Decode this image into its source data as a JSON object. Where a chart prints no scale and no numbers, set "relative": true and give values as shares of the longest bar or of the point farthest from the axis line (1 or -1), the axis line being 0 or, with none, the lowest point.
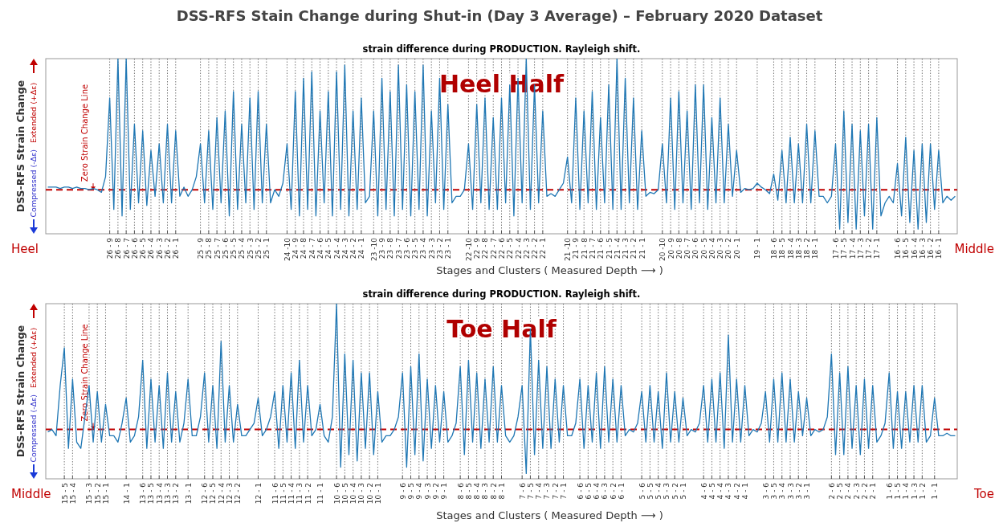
{
  "chart_data": [
    {
      "type": "line",
      "title": "DSS-RFS Stain Change during Shut-in (Day 3 Average) – February 2020 Dataset",
      "subtitle": "strain difference during PRODUCTION. Rayleigh shift.",
      "xlabel": "Stages and Clusters ( Measured Depth ⟶ )",
      "ylabel": "DSS-RFS Strain Change",
      "annotations": [
        "Heel Half",
        "Heel",
        "Middle",
        "Extended (+Δε)",
        "Compressed (-Δε)"
      ],
      "relative": true,
      "grid": "x",
      "categories": [
        null,
        null,
        null,
        null,
        null,
        null,
        null,
        null,
        null,
        null,
        null,
        null,
        null,
        null,
        null,
        "26 - 9",
        null,
        "26 - 8",
        null,
        "26 - 7",
        null,
        "26 - 6",
        null,
        "26 - 5",
        null,
        "26 - 4",
        null,
        "26 - 3",
        null,
        "26 - 2",
        null,
        "26 - 1",
        null,
        null,
        null,
        null,
        null,
        "25 - 9",
        null,
        "25 - 8",
        null,
        "25 - 7",
        null,
        "25 - 6",
        null,
        "25 - 5",
        null,
        "25 - 4",
        null,
        "25 - 3",
        null,
        "25 - 2",
        null,
        "25 - 1",
        null,
        null,
        null,
        null,
        "24 -10",
        null,
        "24 - 9",
        null,
        "24 - 8",
        null,
        "24 - 7",
        null,
        "24 - 6",
        null,
        "24 - 5",
        null,
        "24 - 4",
        null,
        "24 - 3",
        null,
        "24 - 2",
        null,
        "24 - 1",
        null,
        null,
        "23 -10",
        null,
        "23 - 9",
        null,
        "23 - 8",
        null,
        "23 - 7",
        null,
        "23 - 6",
        null,
        "23 - 5",
        null,
        "23 - 4",
        null,
        "23 - 3",
        null,
        "23 - 2",
        null,
        "23 - 1",
        null,
        null,
        null,
        null,
        "22 -10",
        null,
        "22 - 9",
        null,
        "22 - 8",
        null,
        "22 - 7",
        null,
        "22 - 6",
        null,
        "22 - 5",
        null,
        "22 - 4",
        null,
        "22 - 3",
        null,
        "22 - 2",
        null,
        "22 - 1",
        null,
        null,
        null,
        null,
        null,
        "21 -10",
        null,
        "21 - 9",
        null,
        "21 - 8",
        null,
        "21 - 7",
        null,
        "21 - 6",
        null,
        "21 - 5",
        null,
        "21 - 4",
        null,
        "21 - 3",
        null,
        "21 - 2",
        null,
        "21 - 1",
        null,
        null,
        null,
        null,
        "20 -10",
        null,
        "20 - 9",
        null,
        "20 - 8",
        null,
        "20 - 7",
        null,
        "20 - 6",
        null,
        "20 - 5",
        null,
        "20 - 4",
        null,
        "20 - 3",
        null,
        "20 - 2",
        null,
        "20 - 1",
        null,
        null,
        null,
        null,
        "19 - 1",
        null,
        null,
        null,
        "18 - 6",
        null,
        "18 - 5",
        null,
        "18 - 4",
        null,
        "18 - 3",
        null,
        "18 - 2",
        null,
        "18 - 1",
        null,
        null,
        null,
        null,
        "17 - 6",
        null,
        "17 - 5",
        null,
        "17 - 4",
        null,
        "17 - 3",
        null,
        "17 - 2",
        null,
        "17 - 1",
        null,
        null,
        null,
        null,
        "16 - 6",
        null,
        "16 - 5",
        null,
        "16 - 4",
        null,
        "16 - 3",
        null,
        "16 - 2",
        null,
        "16 - 1",
        null,
        null,
        null,
        null
      ],
      "ref_lines": [
        {
          "axis": "y",
          "value": 0,
          "label": "Zero  Strain Change Line",
          "color": "#c00000",
          "line_style": "dashed"
        }
      ],
      "series": [
        {
          "color": "#1f77b4",
          "values": [
            0.02,
            0.02,
            0.02,
            0.01,
            0.02,
            0.02,
            0.01,
            0.02,
            0.01,
            0.01,
            0,
            0.01,
            0,
            -0.02,
            0.1,
            0.7,
            -0.15,
            1,
            -0.2,
            1,
            -0.15,
            0.5,
            -0.1,
            0.45,
            -0.12,
            0.3,
            -0.05,
            0.35,
            -0.1,
            0.5,
            -0.1,
            0.45,
            -0.05,
            0.02,
            -0.05,
            0,
            0.1,
            0.35,
            -0.1,
            0.45,
            -0.15,
            0.55,
            -0.1,
            0.6,
            -0.2,
            0.75,
            -0.15,
            0.5,
            -0.1,
            0.7,
            -0.15,
            0.75,
            -0.1,
            0.5,
            -0.1,
            0,
            -0.05,
            0.05,
            0.35,
            -0.15,
            0.75,
            -0.2,
            0.85,
            -0.15,
            0.9,
            -0.2,
            0.6,
            -0.1,
            0.75,
            -0.2,
            0.9,
            -0.15,
            0.95,
            -0.2,
            0.6,
            -0.15,
            0.7,
            -0.1,
            -0.05,
            0.6,
            -0.2,
            0.85,
            -0.15,
            0.75,
            -0.2,
            0.95,
            -0.15,
            0.8,
            -0.2,
            0.75,
            -0.15,
            0.95,
            -0.2,
            0.6,
            -0.1,
            0.85,
            -0.15,
            0.65,
            -0.1,
            -0.05,
            -0.05,
            0,
            0.35,
            -0.15,
            0.65,
            -0.1,
            0.7,
            -0.15,
            0.55,
            -0.15,
            0.7,
            -0.1,
            0.8,
            -0.2,
            0.85,
            -0.1,
            1,
            -0.15,
            0.8,
            -0.1,
            0.6,
            -0.05,
            -0.03,
            -0.05,
            0,
            0.05,
            0.25,
            -0.1,
            0.7,
            -0.15,
            0.6,
            -0.1,
            0.75,
            -0.15,
            0.55,
            -0.1,
            0.8,
            -0.15,
            1,
            -0.15,
            0.85,
            -0.1,
            0.7,
            -0.15,
            0.45,
            -0.05,
            -0.02,
            -0.03,
            0,
            0.35,
            -0.1,
            0.7,
            -0.15,
            0.75,
            -0.1,
            0.6,
            -0.15,
            0.8,
            -0.1,
            0.8,
            -0.15,
            0.55,
            -0.1,
            0.7,
            -0.1,
            0.5,
            -0.05,
            0.3,
            -0.02,
            0.01,
            0,
            0.01,
            0.05,
            0.02,
            0,
            -0.03,
            0.12,
            -0.08,
            0.3,
            -0.1,
            0.4,
            -0.1,
            0.35,
            -0.1,
            0.5,
            -0.1,
            0.45,
            -0.05,
            -0.05,
            -0.1,
            -0.05,
            0.35,
            -0.3,
            0.6,
            -0.25,
            0.5,
            -0.3,
            0.45,
            -0.2,
            0.5,
            -0.3,
            0.55,
            -0.2,
            -0.1,
            -0.05,
            -0.1,
            0.2,
            -0.2,
            0.4,
            -0.25,
            0.3,
            -0.3,
            0.35,
            -0.25,
            0.35,
            -0.15,
            0.3,
            -0.1,
            -0.05,
            -0.08,
            -0.05
          ]
        }
      ]
    },
    {
      "type": "line",
      "subtitle": "strain difference during PRODUCTION. Rayleigh shift.",
      "xlabel": "Stages and Clusters ( Measured Depth ⟶ )",
      "ylabel": "DSS-RFS Strain Change",
      "annotations": [
        "Toe Half",
        "Middle",
        "Toe",
        "Extended (+Δε)",
        "Compressed (-Δε)"
      ],
      "relative": true,
      "grid": "x",
      "categories": [
        null,
        null,
        null,
        null,
        "15 - 5",
        null,
        "15 - 4",
        null,
        null,
        null,
        "15 - 3",
        null,
        "15 - 2",
        null,
        "15 - 1",
        null,
        null,
        null,
        null,
        "14 - 1",
        null,
        null,
        null,
        "13 - 6",
        null,
        "13 - 5",
        null,
        "13 - 4",
        null,
        "13 - 3",
        null,
        "13 - 2",
        null,
        null,
        "13 - 1",
        null,
        null,
        null,
        "12 - 6",
        null,
        "12 - 5",
        null,
        "12 - 4",
        null,
        "12 - 3",
        null,
        "12 - 2",
        null,
        null,
        null,
        null,
        "12 - 1",
        null,
        null,
        null,
        "11 - 6",
        null,
        "11 - 5",
        null,
        "11 - 4",
        null,
        "11 - 3",
        null,
        "11 - 2",
        null,
        null,
        "11 - 1",
        null,
        null,
        null,
        "10 - 6",
        null,
        "10 - 5",
        null,
        "10 - 4",
        null,
        "10 - 3",
        null,
        "10 - 2",
        null,
        "10 - 1",
        null,
        null,
        null,
        null,
        null,
        "9 - 6",
        null,
        "9 - 5",
        null,
        "9 - 4",
        null,
        "9 - 3",
        null,
        "9 - 2",
        null,
        "9 - 1",
        null,
        null,
        null,
        "8 - 6",
        null,
        "8 - 5",
        null,
        "8 - 4",
        null,
        "8 - 3",
        null,
        "8 - 2",
        null,
        "8 - 1",
        null,
        null,
        null,
        null,
        "7 - 6",
        null,
        "7 - 5",
        null,
        "7 - 4",
        null,
        "7 - 3",
        null,
        "7 - 2",
        null,
        "7 - 1",
        null,
        null,
        null,
        "6 - 6",
        null,
        "6 - 5",
        null,
        "6 - 4",
        null,
        "6 - 3",
        null,
        "6 - 2",
        null,
        "6 - 1",
        null,
        null,
        null,
        null,
        "5 - 6",
        null,
        "5 - 5",
        null,
        "5 - 4",
        null,
        "5 - 3",
        null,
        "5 - 2",
        null,
        "5 - 1",
        null,
        null,
        null,
        null,
        "4 - 6",
        null,
        "4 - 5",
        null,
        "4 - 4",
        null,
        "4 - 3",
        null,
        "4 - 2",
        null,
        "4 - 1",
        null,
        null,
        null,
        null,
        "3 - 6",
        null,
        "3 - 5",
        null,
        "3 - 4",
        null,
        "3 - 3",
        null,
        "3 - 2",
        null,
        "3 - 1",
        null,
        null,
        null,
        null,
        null,
        "2 - 6",
        null,
        "2 - 5",
        null,
        "2 - 4",
        null,
        "2 - 3",
        null,
        "2 - 2",
        null,
        "2 - 1",
        null,
        null,
        null,
        "1 - 6",
        null,
        "1 - 5",
        null,
        "1 - 4",
        null,
        "1 - 3",
        null,
        "1 - 2",
        null,
        null,
        "1 - 1",
        null,
        null,
        null,
        null,
        null
      ],
      "ref_lines": [
        {
          "axis": "y",
          "value": 0,
          "label": "Zero  Strain Change Line",
          "color": "#c00000",
          "line_style": "dashed"
        }
      ],
      "series": [
        {
          "color": "#1f77b4",
          "values": [
            -0.02,
            0,
            -0.05,
            0.35,
            0.65,
            -0.15,
            0.4,
            -0.1,
            -0.15,
            0.1,
            0.35,
            -0.1,
            0.3,
            -0.1,
            0.2,
            -0.05,
            -0.05,
            -0.1,
            0.05,
            0.25,
            -0.1,
            -0.05,
            0.1,
            0.55,
            -0.15,
            0.4,
            -0.1,
            0.35,
            -0.15,
            0.45,
            -0.1,
            0.3,
            -0.1,
            0.05,
            0.4,
            -0.05,
            -0.05,
            0.1,
            0.45,
            -0.1,
            0.35,
            -0.15,
            0.7,
            -0.1,
            0.35,
            -0.1,
            0.2,
            -0.05,
            -0.05,
            0,
            0.05,
            0.25,
            -0.05,
            0,
            0.1,
            0.3,
            -0.15,
            0.35,
            -0.1,
            0.45,
            -0.15,
            0.55,
            -0.1,
            0.35,
            -0.05,
            0,
            0.2,
            -0.05,
            -0.1,
            0.1,
            1,
            -0.3,
            0.6,
            -0.2,
            0.55,
            -0.25,
            0.45,
            -0.15,
            0.45,
            -0.2,
            0.3,
            -0.1,
            -0.05,
            -0.05,
            0,
            0.1,
            0.45,
            -0.3,
            0.5,
            -0.2,
            0.6,
            -0.25,
            0.4,
            -0.15,
            0.35,
            -0.1,
            0.3,
            -0.1,
            -0.05,
            0.05,
            0.5,
            -0.2,
            0.55,
            -0.1,
            0.45,
            -0.15,
            0.4,
            -0.1,
            0.5,
            -0.1,
            0.35,
            -0.05,
            -0.1,
            -0.05,
            0.1,
            0.35,
            -0.35,
            0.8,
            -0.2,
            0.55,
            -0.15,
            0.5,
            -0.15,
            0.4,
            -0.1,
            0.35,
            -0.05,
            -0.05,
            0.05,
            0.4,
            -0.15,
            0.35,
            -0.1,
            0.45,
            -0.15,
            0.5,
            -0.1,
            0.4,
            -0.1,
            0.35,
            -0.05,
            0,
            -0.02,
            0.05,
            0.3,
            -0.1,
            0.35,
            -0.1,
            0.3,
            -0.15,
            0.45,
            -0.1,
            0.3,
            -0.1,
            0.25,
            -0.05,
            0,
            -0.02,
            0.05,
            0.35,
            -0.1,
            0.4,
            -0.1,
            0.45,
            -0.15,
            0.75,
            -0.1,
            0.4,
            -0.1,
            0.35,
            -0.05,
            0,
            -0.02,
            0.05,
            0.3,
            -0.1,
            0.4,
            -0.1,
            0.45,
            -0.1,
            0.4,
            -0.1,
            0.3,
            -0.05,
            0.25,
            -0.05,
            0,
            -0.02,
            0,
            0.1,
            0.6,
            -0.2,
            0.45,
            -0.2,
            0.5,
            -0.15,
            0.35,
            -0.2,
            0.4,
            -0.15,
            0.35,
            -0.1,
            -0.05,
            0.05,
            0.45,
            -0.15,
            0.3,
            -0.15,
            0.3,
            -0.1,
            0.35,
            -0.1,
            0.35,
            -0.1,
            -0.05,
            0.25,
            -0.05,
            -0.05,
            -0.03,
            -0.05,
            -0.05
          ]
        }
      ]
    }
  ]
}
